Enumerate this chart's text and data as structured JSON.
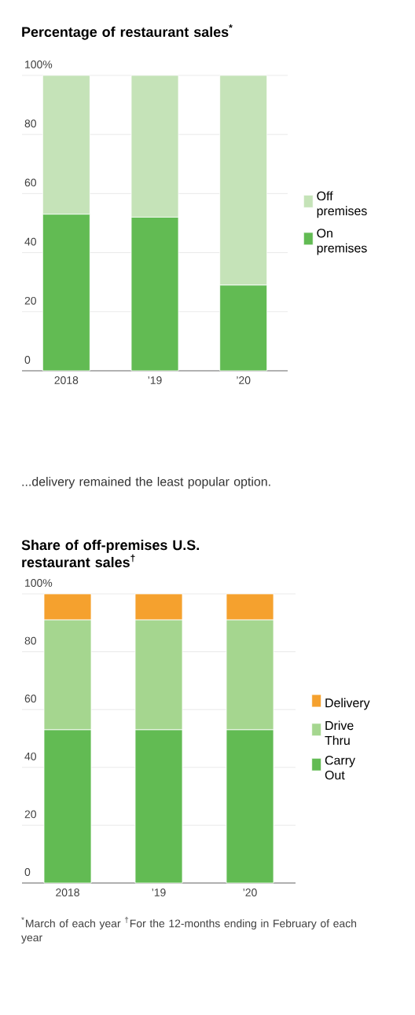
{
  "chart_data": [
    {
      "type": "bar",
      "stacked": true,
      "title": "Percentage of restaurant sales$^{*}$",
      "categories": [
        "2018",
        "’19",
        "’20"
      ],
      "series": [
        {
          "name": "On premises",
          "color": "#62bb53",
          "values": [
            53,
            52,
            29
          ]
        },
        {
          "name": "Off premises",
          "color": "#c5e3b8",
          "values": [
            47,
            48,
            71
          ]
        }
      ],
      "ylim": [
        0,
        100
      ],
      "yticks": [
        0,
        20,
        40,
        60,
        80,
        {
          "value": 100,
          "label": "100%"
        }
      ],
      "grid": "y",
      "legend": "right"
    },
    {
      "type": "bar",
      "stacked": true,
      "subtitle": "...delivery remained the least popular option.",
      "title": "Share of off-premises U.S. restaurant sales$^{†}$",
      "categories": [
        "2018",
        "’19",
        "’20"
      ],
      "series": [
        {
          "name": "Carry Out",
          "color": "#62bb53",
          "values": [
            53,
            53,
            53
          ]
        },
        {
          "name": "Drive Thru",
          "color": "#a5d68f",
          "values": [
            38,
            38,
            38
          ]
        },
        {
          "name": "Delivery",
          "color": "#f5a12e",
          "values": [
            9,
            9,
            9
          ]
        }
      ],
      "ylim": [
        0,
        100
      ],
      "yticks": [
        0,
        20,
        40,
        60,
        80,
        {
          "value": 100,
          "label": "100%"
        }
      ],
      "grid": "y",
      "legend": "right",
      "annotations": [
        "$^{*}$March of each year $^{†}$For the 12-months ending in February of each year"
      ]
    }
  ]
}
